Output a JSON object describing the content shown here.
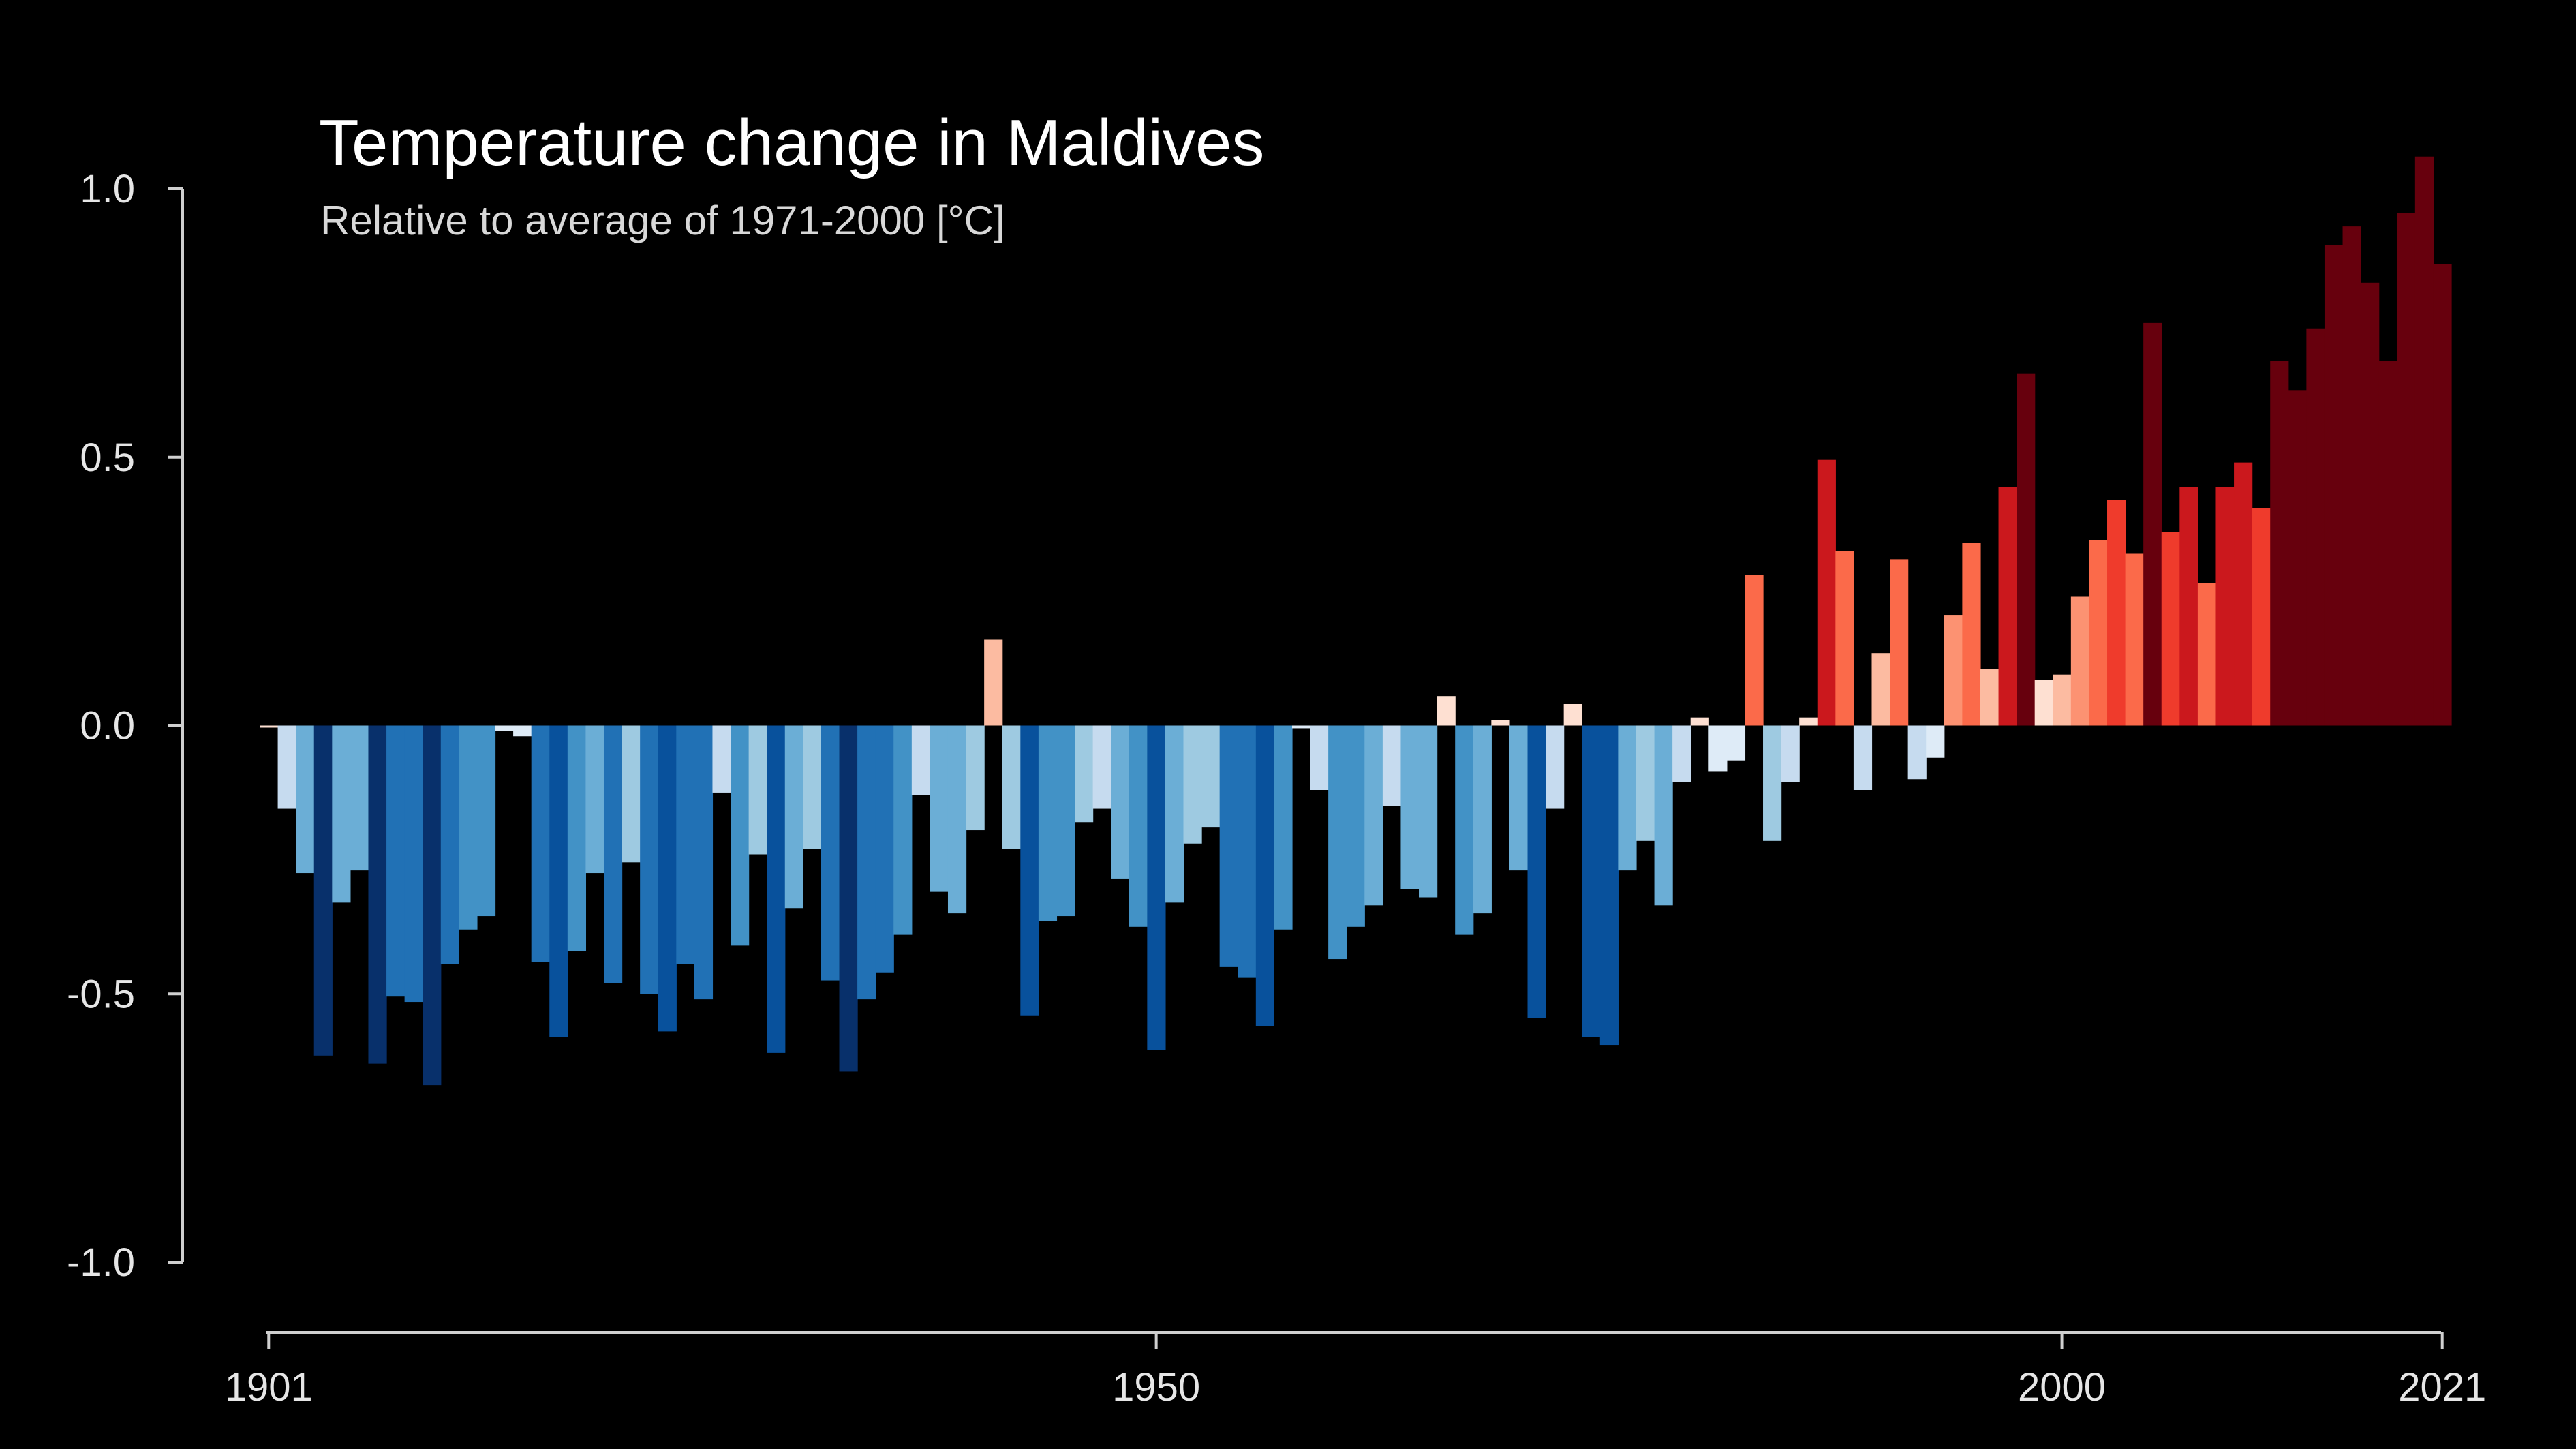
{
  "chart_data": {
    "type": "bar",
    "title": "Temperature change in Maldives",
    "subtitle": "Relative to average of 1971-2000  [°C]",
    "xlabel": "",
    "ylabel": "",
    "x_start": 1901,
    "x_end": 2021,
    "ylim": [
      -1.0,
      1.0
    ],
    "y_ticks": [
      "1.0",
      "0.5",
      "0.0",
      "-0.5",
      "-1.0"
    ],
    "x_ticks": [
      "1901",
      "1950",
      "2000",
      "2021"
    ],
    "grid": false,
    "legend": "none",
    "background": "#000000",
    "color_scale": [
      "#08306b",
      "#08519c",
      "#2171b5",
      "#4292c6",
      "#6baed6",
      "#9ecae1",
      "#c6dbef",
      "#deebf7",
      "#fee0d2",
      "#fcbba1",
      "#fc9272",
      "#fb6a4a",
      "#ef3b2c",
      "#cb181d",
      "#a50f15",
      "#67000d"
    ],
    "values": [
      0.0,
      -0.155,
      -0.275,
      -0.615,
      -0.33,
      -0.27,
      -0.63,
      -0.505,
      -0.515,
      -0.67,
      -0.445,
      -0.38,
      -0.355,
      -0.01,
      -0.02,
      -0.44,
      -0.58,
      -0.42,
      -0.275,
      -0.48,
      -0.255,
      -0.5,
      -0.57,
      -0.445,
      -0.51,
      -0.125,
      -0.41,
      -0.24,
      -0.61,
      -0.34,
      -0.23,
      -0.475,
      -0.645,
      -0.51,
      -0.46,
      -0.39,
      -0.13,
      -0.31,
      -0.35,
      -0.195,
      0.16,
      -0.23,
      -0.54,
      -0.365,
      -0.355,
      -0.18,
      -0.155,
      -0.285,
      -0.375,
      -0.605,
      -0.33,
      -0.22,
      -0.19,
      -0.45,
      -0.47,
      -0.56,
      -0.38,
      -0.005,
      -0.12,
      -0.435,
      -0.375,
      -0.335,
      -0.15,
      -0.305,
      -0.32,
      0.055,
      -0.39,
      -0.35,
      0.01,
      -0.27,
      -0.545,
      -0.155,
      0.04,
      -0.58,
      -0.595,
      -0.27,
      -0.215,
      -0.335,
      -0.105,
      0.015,
      -0.085,
      -0.065,
      0.28,
      -0.215,
      -0.105,
      0.015,
      0.495,
      0.325,
      -0.12,
      0.135,
      0.31,
      -0.1,
      -0.06,
      0.205,
      0.34,
      0.105,
      0.445,
      0.655,
      0.085,
      0.095,
      0.24,
      0.345,
      0.42,
      0.32,
      0.75,
      0.36,
      0.445,
      0.265,
      0.445,
      0.49,
      0.405,
      0.68,
      0.625,
      0.74,
      0.895,
      0.93,
      0.825,
      0.68,
      0.955,
      1.06,
      0.86
    ]
  }
}
